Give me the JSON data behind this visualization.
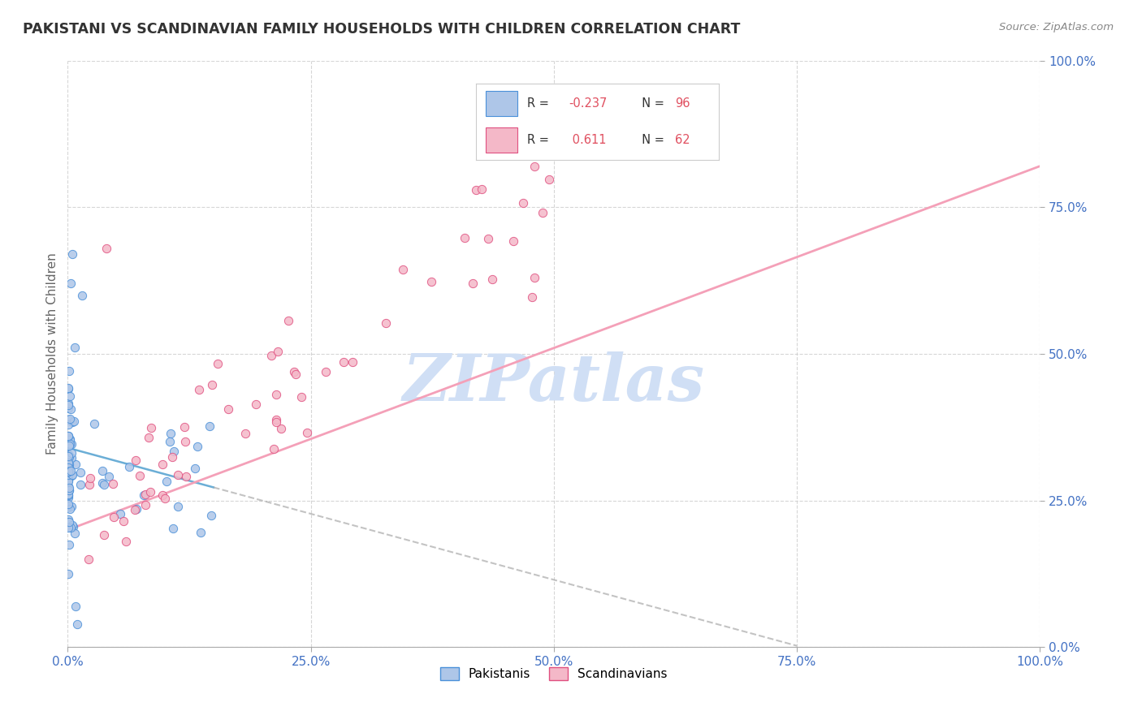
{
  "title": "PAKISTANI VS SCANDINAVIAN FAMILY HOUSEHOLDS WITH CHILDREN CORRELATION CHART",
  "source_text": "Source: ZipAtlas.com",
  "ylabel": "Family Households with Children",
  "x_tick_vals": [
    0,
    25,
    50,
    75,
    100
  ],
  "y_tick_vals": [
    0,
    25,
    50,
    75,
    100
  ],
  "pakistani_R": -0.237,
  "pakistani_N": 96,
  "scandinavian_R": 0.611,
  "scandinavian_N": 62,
  "pakistani_color": "#aec6e8",
  "scandinavian_color": "#f4b8c8",
  "pakistani_line_color": "#6baed6",
  "scandinavian_line_color": "#f4a0b8",
  "pakistani_edge_color": "#4a90d9",
  "scandinavian_edge_color": "#e05080",
  "watermark_color": "#d0dff5",
  "background_color": "#ffffff",
  "grid_color": "#cccccc",
  "title_color": "#333333",
  "label_color": "#4472c4",
  "legend_text_color": "#333333",
  "legend_R_color": "#e05080"
}
